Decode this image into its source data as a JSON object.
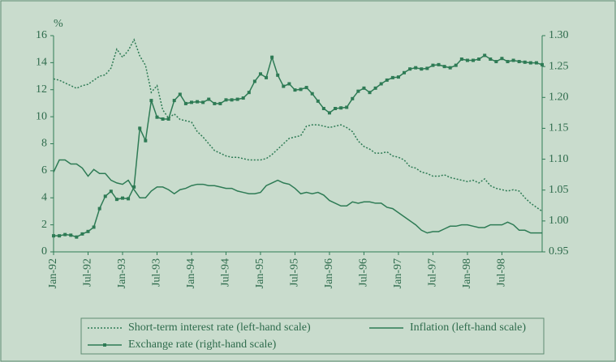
{
  "chart_data": {
    "type": "line",
    "ylabel": "%",
    "categories": [
      "Jan-92",
      null,
      null,
      null,
      null,
      null,
      "Jul-92",
      null,
      null,
      null,
      null,
      null,
      "Jan-93",
      null,
      null,
      null,
      null,
      null,
      "Jul-93",
      null,
      null,
      null,
      null,
      null,
      "Jan-94",
      null,
      null,
      null,
      null,
      null,
      "Jul-94",
      null,
      null,
      null,
      null,
      null,
      "Jan-95",
      null,
      null,
      null,
      null,
      null,
      "Jul-95",
      null,
      null,
      null,
      null,
      null,
      "Jan-96",
      null,
      null,
      null,
      null,
      null,
      "Jul-96",
      null,
      null,
      null,
      null,
      null,
      "Jan-97",
      null,
      null,
      null,
      null,
      null,
      "Jul-97",
      null,
      null,
      null,
      null,
      null,
      "Jan-98",
      null,
      null,
      null,
      null,
      null,
      "Jul-98",
      null,
      null,
      null,
      null,
      null,
      null,
      null
    ],
    "series": [
      {
        "name": "Short-term interest rate (left-hand scale)",
        "color": "#2e7b55",
        "style": "dotted",
        "axis": "y",
        "values": [
          12.8,
          12.7,
          12.5,
          12.3,
          12.1,
          12.3,
          12.4,
          12.7,
          13.0,
          13.1,
          13.6,
          15.0,
          14.4,
          14.9,
          15.7,
          14.5,
          13.8,
          11.8,
          12.3,
          10.5,
          9.9,
          10.2,
          9.8,
          9.7,
          9.6,
          8.9,
          8.5,
          8.0,
          7.5,
          7.3,
          7.1,
          7.0,
          7.0,
          6.9,
          6.8,
          6.8,
          6.8,
          6.9,
          7.2,
          7.6,
          8.0,
          8.4,
          8.5,
          8.6,
          9.3,
          9.4,
          9.4,
          9.3,
          9.2,
          9.3,
          9.4,
          9.2,
          8.9,
          8.2,
          7.8,
          7.6,
          7.3,
          7.3,
          7.4,
          7.1,
          7.0,
          6.8,
          6.3,
          6.2,
          5.9,
          5.8,
          5.6,
          5.6,
          5.7,
          5.5,
          5.4,
          5.3,
          5.2,
          5.3,
          5.1,
          5.4,
          4.9,
          4.7,
          4.6,
          4.5,
          4.6,
          4.5,
          4.0,
          3.6,
          3.3,
          3.0
        ]
      },
      {
        "name": "Inflation (left-hand scale)",
        "color": "#2e7b55",
        "style": "solid",
        "axis": "y",
        "values": [
          5.9,
          6.8,
          6.8,
          6.5,
          6.5,
          6.2,
          5.6,
          6.1,
          5.8,
          5.8,
          5.3,
          5.1,
          5.0,
          5.3,
          4.6,
          4.0,
          4.0,
          4.5,
          4.8,
          4.8,
          4.6,
          4.3,
          4.6,
          4.7,
          4.9,
          5.0,
          5.0,
          4.9,
          4.9,
          4.8,
          4.7,
          4.7,
          4.5,
          4.4,
          4.3,
          4.3,
          4.4,
          4.9,
          5.1,
          5.3,
          5.1,
          5.0,
          4.7,
          4.3,
          4.4,
          4.3,
          4.4,
          4.2,
          3.8,
          3.6,
          3.4,
          3.4,
          3.7,
          3.6,
          3.7,
          3.7,
          3.6,
          3.6,
          3.3,
          3.2,
          2.9,
          2.6,
          2.3,
          2.0,
          1.6,
          1.4,
          1.5,
          1.5,
          1.7,
          1.9,
          1.9,
          2.0,
          2.0,
          1.9,
          1.8,
          1.8,
          2.0,
          2.0,
          2.0,
          2.2,
          2.0,
          1.6,
          1.6,
          1.4,
          1.4,
          1.4
        ]
      },
      {
        "name": "Exchange rate (right-hand scale)",
        "color": "#2e7b55",
        "style": "marker",
        "axis": "y2",
        "values": [
          0.976,
          0.976,
          0.978,
          0.977,
          0.974,
          0.979,
          0.983,
          0.99,
          1.02,
          1.04,
          1.048,
          1.035,
          1.037,
          1.036,
          1.055,
          1.15,
          1.13,
          1.195,
          1.168,
          1.165,
          1.165,
          1.195,
          1.205,
          1.19,
          1.192,
          1.193,
          1.192,
          1.197,
          1.19,
          1.19,
          1.196,
          1.196,
          1.197,
          1.199,
          1.208,
          1.226,
          1.238,
          1.232,
          1.265,
          1.236,
          1.218,
          1.222,
          1.212,
          1.213,
          1.216,
          1.206,
          1.194,
          1.182,
          1.175,
          1.182,
          1.183,
          1.184,
          1.198,
          1.21,
          1.215,
          1.208,
          1.215,
          1.222,
          1.228,
          1.232,
          1.233,
          1.24,
          1.246,
          1.248,
          1.246,
          1.247,
          1.252,
          1.253,
          1.25,
          1.248,
          1.252,
          1.262,
          1.26,
          1.26,
          1.262,
          1.268,
          1.262,
          1.258,
          1.263,
          1.258,
          1.26,
          1.258,
          1.257,
          1.256,
          1.256,
          1.253
        ]
      }
    ],
    "ylim": [
      0,
      16
    ],
    "yticks": [
      0,
      2,
      4,
      6,
      8,
      10,
      12,
      14,
      16
    ],
    "y2lim": [
      0.95,
      1.3
    ],
    "y2ticks": [
      0.95,
      {
        "value": 1,
        "label": "1.00"
      },
      1.05,
      {
        "value": 1.1,
        "label": "1.10"
      },
      1.15,
      {
        "value": 1.2,
        "label": "1.20"
      },
      1.25,
      {
        "value": 1.3,
        "label": "1.30"
      }
    ],
    "legend": "bottom"
  }
}
